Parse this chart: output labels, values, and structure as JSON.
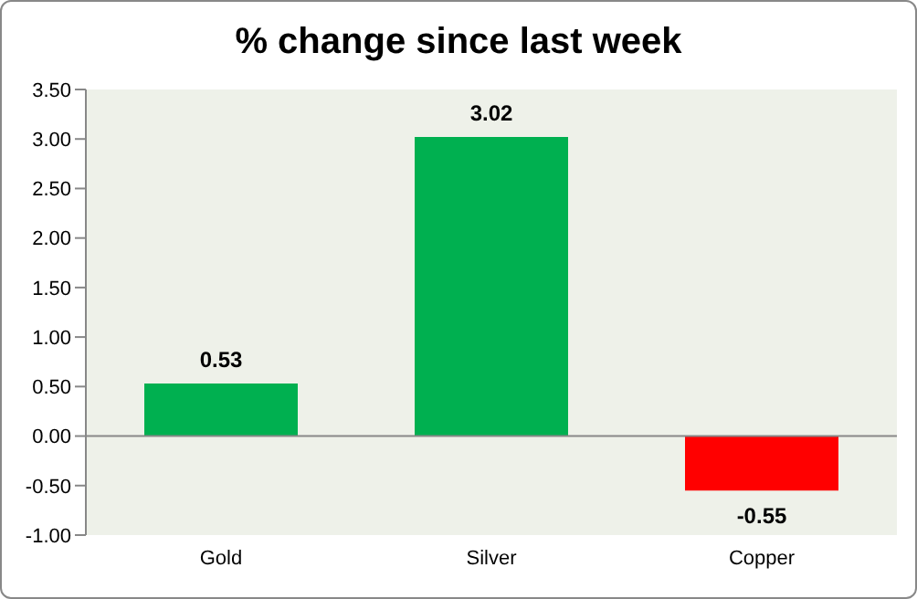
{
  "chart_data": {
    "type": "bar",
    "title": "% change since last week",
    "categories": [
      "Gold",
      "Silver",
      "Copper"
    ],
    "values": [
      0.53,
      3.02,
      -0.55
    ],
    "colors": [
      "#00b050",
      "#00b050",
      "#ff0000"
    ],
    "ylim": [
      -1,
      3.5
    ],
    "yticks": [
      {
        "value": -1,
        "label": "-1.00"
      },
      {
        "value": -0.5,
        "label": "-0.50"
      },
      {
        "value": 0,
        "label": "0.00"
      },
      {
        "value": 0.5,
        "label": "0.50"
      },
      {
        "value": 1,
        "label": "1.00"
      },
      {
        "value": 1.5,
        "label": "1.50"
      },
      {
        "value": 2,
        "label": "2.00"
      },
      {
        "value": 2.5,
        "label": "2.50"
      },
      {
        "value": 3,
        "label": "3.00"
      },
      {
        "value": 3.5,
        "label": "3.50"
      }
    ],
    "data_labels": true
  }
}
